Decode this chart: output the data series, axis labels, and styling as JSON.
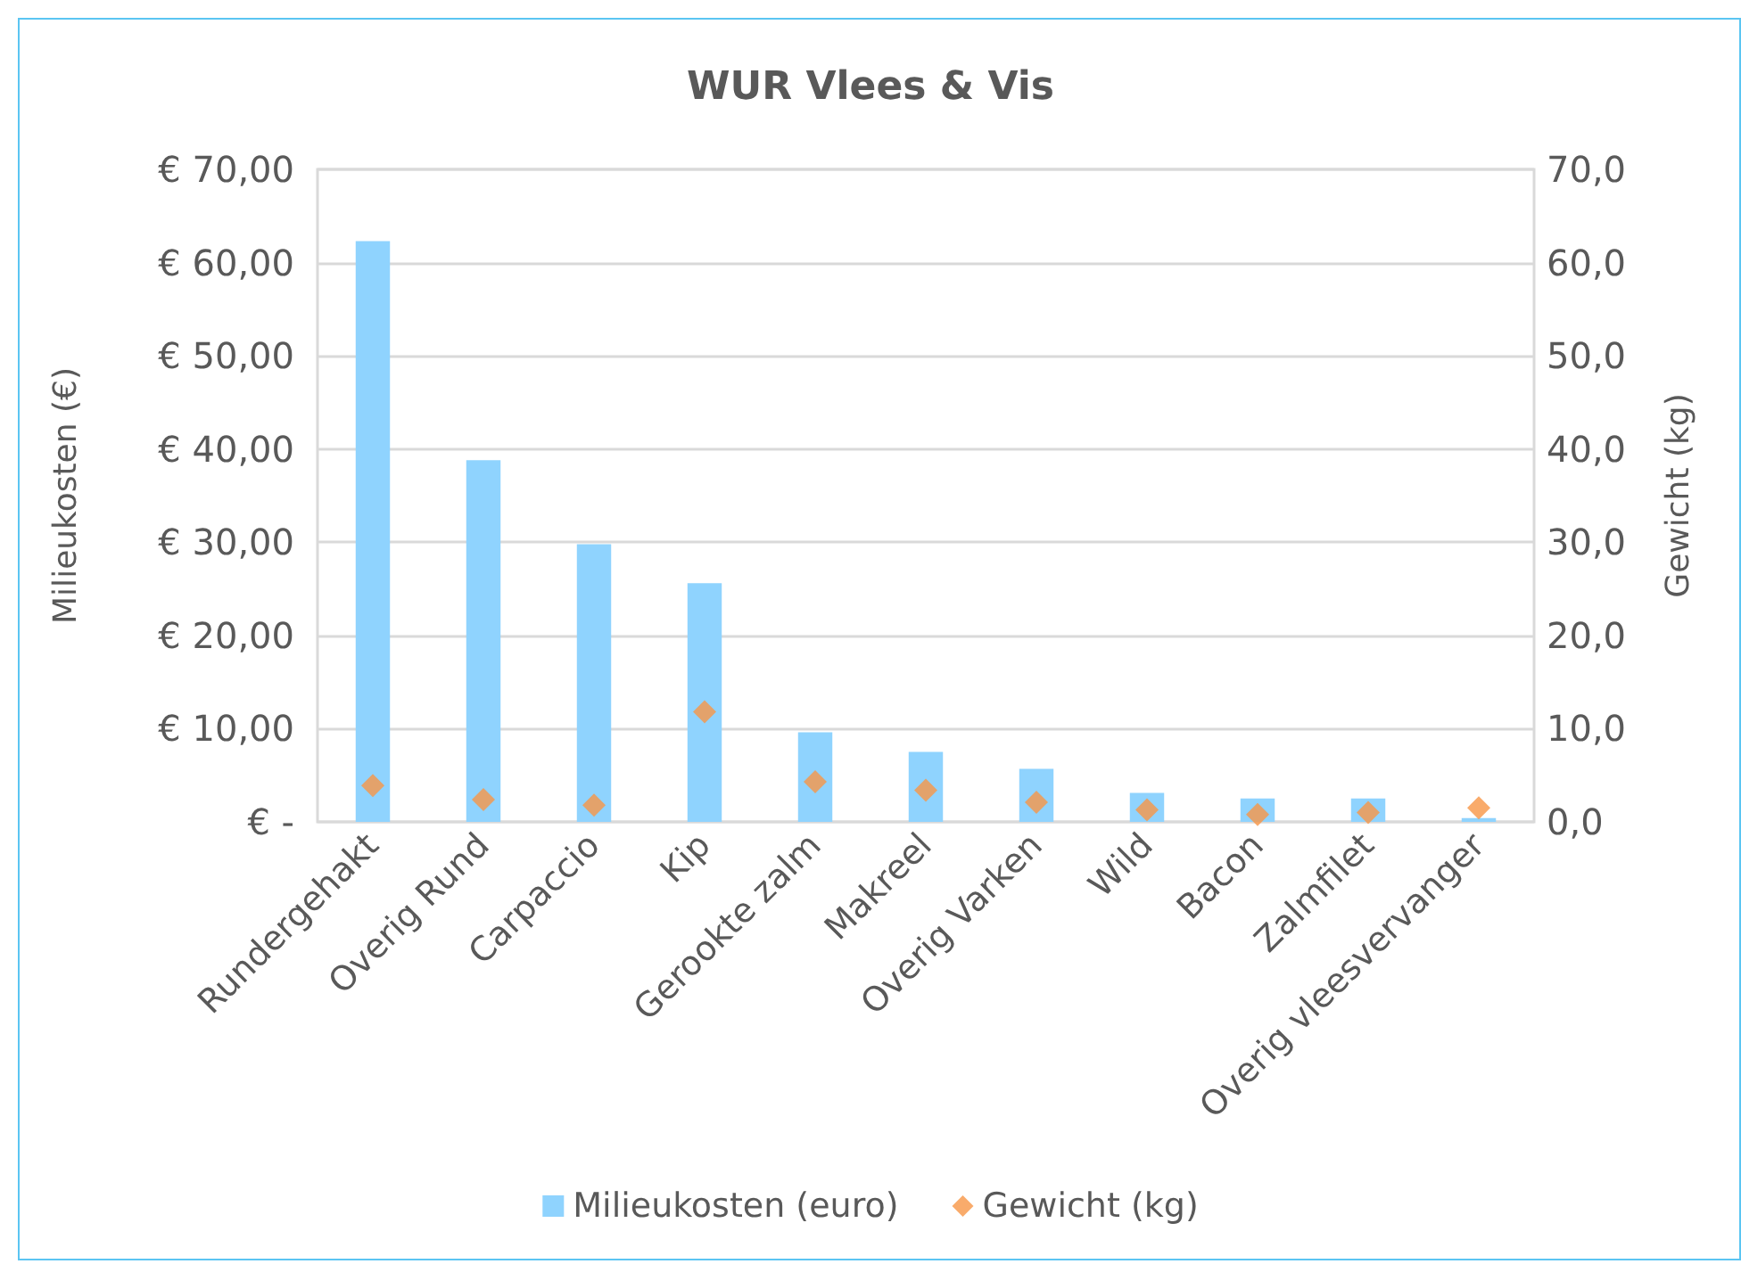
{
  "chart_data": {
    "type": "bar",
    "title": "WUR Vlees & Vis",
    "ylabel": "Milieukosten (€)",
    "y2label": "Gewicht (kg)",
    "categories": [
      "Rundergehakt",
      "Overig Rund",
      "Carpaccio",
      "Kip",
      "Gerookte zalm",
      "Makreel",
      "Overig Varken",
      "Wild",
      "Bacon",
      "Zalmfilet",
      "Overig vleesvervanger"
    ],
    "series": [
      {
        "name": "Milieukosten (euro)",
        "color": "#8fd3fe",
        "values": [
          62.3,
          38.8,
          29.8,
          25.6,
          9.6,
          7.5,
          5.7,
          3.1,
          2.5,
          2.5,
          0.4
        ]
      },
      {
        "name": "Gewicht (kg)",
        "type": "scatter",
        "axis": "y2",
        "color": "#f79646",
        "values": [
          3.9,
          2.4,
          1.8,
          11.8,
          4.3,
          3.4,
          2.1,
          1.3,
          0.8,
          1.0,
          1.5
        ]
      }
    ],
    "ylim": [
      0,
      70
    ],
    "yticks": [
      {
        "value": 0,
        "label": "€ -"
      },
      {
        "value": 10,
        "label": "€ 10,00"
      },
      {
        "value": 20,
        "label": "€ 20,00"
      },
      {
        "value": 30,
        "label": "€ 30,00"
      },
      {
        "value": 40,
        "label": "€ 40,00"
      },
      {
        "value": 50,
        "label": "€ 50,00"
      },
      {
        "value": 60,
        "label": "€ 60,00"
      },
      {
        "value": 70,
        "label": "€ 70,00"
      }
    ],
    "y2lim": [
      0,
      70
    ],
    "y2ticks": [
      {
        "value": 0,
        "label": "0,0"
      },
      {
        "value": 10,
        "label": "10,0"
      },
      {
        "value": 20,
        "label": "20,0"
      },
      {
        "value": 30,
        "label": "30,0"
      },
      {
        "value": 40,
        "label": "40,0"
      },
      {
        "value": 50,
        "label": "50,0"
      },
      {
        "value": 60,
        "label": "60,0"
      },
      {
        "value": 70,
        "label": "70,0"
      }
    ],
    "grid": "y",
    "legend": "bottom",
    "marker": "diamond"
  }
}
